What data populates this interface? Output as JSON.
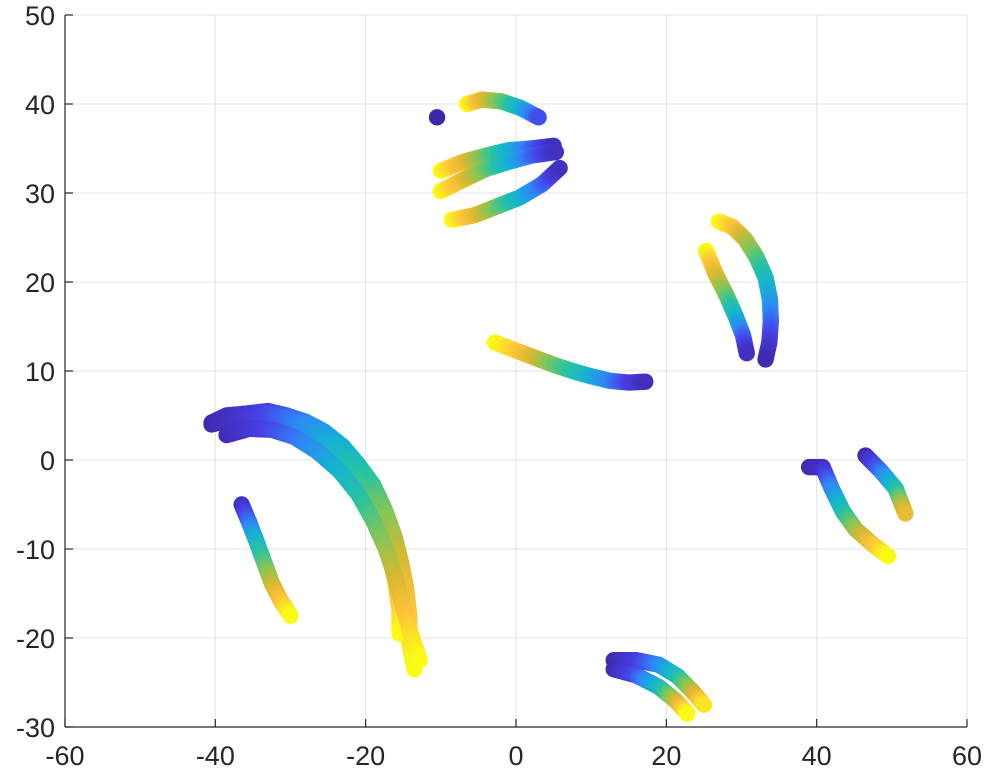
{
  "chart_data": {
    "type": "scatter",
    "title": "",
    "xlabel": "",
    "ylabel": "",
    "xlim": [
      -60,
      60
    ],
    "ylim": [
      -30,
      50
    ],
    "xticks": [
      -60,
      -40,
      -20,
      0,
      20,
      40,
      60
    ],
    "yticks": [
      -30,
      -20,
      -10,
      0,
      10,
      20,
      30,
      40,
      50
    ],
    "grid": true,
    "colormap": "parula",
    "colormap_stops": [
      "#3e26a8",
      "#4740e6",
      "#2e87f7",
      "#15b1d4",
      "#27c3a1",
      "#83c656",
      "#d8b832",
      "#ffc43a",
      "#f9fb15"
    ],
    "series": [
      {
        "points": [
          [
            -40.5,
            4.2
          ],
          [
            -38.5,
            5.0
          ],
          [
            -36,
            5.2
          ],
          [
            -33,
            5.5
          ],
          [
            -30.5,
            5.0
          ],
          [
            -28,
            4.3
          ],
          [
            -25.5,
            3.2
          ],
          [
            -23,
            1.5
          ],
          [
            -21,
            -0.5
          ],
          [
            -19,
            -2.8
          ],
          [
            -17.5,
            -5.5
          ],
          [
            -16.2,
            -8.5
          ],
          [
            -15.3,
            -11.5
          ],
          [
            -14.6,
            -14.5
          ],
          [
            -14.2,
            -17.5
          ],
          [
            -14.2,
            -20.5
          ],
          [
            -13.5,
            -23.5
          ]
        ],
        "c": [
          0.02,
          0.04,
          0.08,
          0.12,
          0.18,
          0.24,
          0.3,
          0.37,
          0.44,
          0.52,
          0.6,
          0.68,
          0.75,
          0.82,
          0.88,
          0.94,
          1.0
        ]
      },
      {
        "points": [
          [
            -40.5,
            4.0
          ],
          [
            -38,
            4.5
          ],
          [
            -35.5,
            5.0
          ],
          [
            -33,
            5.2
          ],
          [
            -30.5,
            4.7
          ],
          [
            -28,
            3.8
          ],
          [
            -25.5,
            2.5
          ],
          [
            -23.2,
            0.5
          ],
          [
            -21.2,
            -2.0
          ],
          [
            -19.5,
            -4.8
          ],
          [
            -18,
            -7.8
          ],
          [
            -16.8,
            -10.8
          ],
          [
            -16,
            -13.8
          ],
          [
            -15.5,
            -16.8
          ],
          [
            -15.5,
            -19.5
          ]
        ],
        "c": [
          0.02,
          0.05,
          0.09,
          0.14,
          0.2,
          0.27,
          0.34,
          0.42,
          0.5,
          0.58,
          0.66,
          0.74,
          0.82,
          0.9,
          1.0
        ]
      },
      {
        "points": [
          [
            -38.5,
            2.8
          ],
          [
            -35.5,
            3.5
          ],
          [
            -32.5,
            3.4
          ],
          [
            -29.5,
            2.6
          ],
          [
            -26.5,
            1.0
          ],
          [
            -23.5,
            -1.2
          ],
          [
            -21,
            -3.8
          ],
          [
            -19,
            -6.8
          ],
          [
            -17.3,
            -10.0
          ],
          [
            -16,
            -13.3
          ],
          [
            -15,
            -16.5
          ],
          [
            -14,
            -19.5
          ],
          [
            -12.8,
            -22.5
          ]
        ],
        "c": [
          0.03,
          0.08,
          0.14,
          0.21,
          0.29,
          0.38,
          0.47,
          0.56,
          0.65,
          0.74,
          0.83,
          0.92,
          1.0
        ]
      },
      {
        "points": [
          [
            -36.5,
            -5.0
          ],
          [
            -35.5,
            -7.0
          ],
          [
            -34.5,
            -9.2
          ],
          [
            -33.5,
            -11.5
          ],
          [
            -32.5,
            -13.8
          ],
          [
            -31.3,
            -15.8
          ],
          [
            -30,
            -17.5
          ]
        ],
        "c": [
          0.05,
          0.2,
          0.4,
          0.55,
          0.7,
          0.85,
          1.0
        ]
      },
      {
        "points": [
          [
            -10.5,
            38.5
          ]
        ],
        "c": [
          0.0
        ]
      },
      {
        "points": [
          [
            -6.5,
            40.0
          ],
          [
            -4.5,
            40.5
          ],
          [
            -2,
            40.3
          ],
          [
            0.5,
            39.6
          ],
          [
            3,
            38.5
          ]
        ],
        "c": [
          1.0,
          0.8,
          0.6,
          0.4,
          0.15
        ]
      },
      {
        "points": [
          [
            -10,
            32.5
          ],
          [
            -7,
            33.5
          ],
          [
            -4,
            34.2
          ],
          [
            -1,
            34.8
          ],
          [
            2,
            35.0
          ],
          [
            5,
            35.3
          ]
        ],
        "c": [
          1.0,
          0.8,
          0.6,
          0.4,
          0.2,
          0.05
        ]
      },
      {
        "points": [
          [
            -10,
            30.2
          ],
          [
            -7,
            31.5
          ],
          [
            -4,
            32.7
          ],
          [
            -1,
            33.5
          ],
          [
            2,
            34.2
          ],
          [
            5.3,
            34.6
          ]
        ],
        "c": [
          1.0,
          0.8,
          0.6,
          0.4,
          0.2,
          0.05
        ]
      },
      {
        "points": [
          [
            -8.5,
            27.0
          ],
          [
            -5.5,
            27.5
          ],
          [
            -2.5,
            28.5
          ],
          [
            0.5,
            29.5
          ],
          [
            3.5,
            31.0
          ],
          [
            5.8,
            32.8
          ]
        ],
        "c": [
          1.0,
          0.8,
          0.6,
          0.4,
          0.2,
          0.05
        ]
      },
      {
        "points": [
          [
            -2.8,
            13.2
          ],
          [
            0,
            12.3
          ],
          [
            2.5,
            11.5
          ],
          [
            5,
            10.7
          ],
          [
            7.5,
            10.0
          ],
          [
            10,
            9.4
          ],
          [
            12.5,
            8.9
          ],
          [
            15,
            8.7
          ],
          [
            17.2,
            8.8
          ]
        ],
        "c": [
          1.0,
          0.9,
          0.75,
          0.6,
          0.5,
          0.38,
          0.25,
          0.12,
          0.04
        ]
      },
      {
        "points": [
          [
            27,
            26.8
          ],
          [
            28.8,
            26.2
          ],
          [
            30.5,
            24.8
          ],
          [
            32,
            22.8
          ],
          [
            33.2,
            20.5
          ],
          [
            33.8,
            18.0
          ],
          [
            33.9,
            15.5
          ],
          [
            33.7,
            13.2
          ],
          [
            33.2,
            11.3
          ]
        ],
        "c": [
          1.0,
          0.88,
          0.72,
          0.58,
          0.45,
          0.33,
          0.2,
          0.1,
          0.02
        ]
      },
      {
        "points": [
          [
            25.3,
            23.5
          ],
          [
            26.5,
            21.0
          ],
          [
            28,
            18.5
          ],
          [
            29.3,
            16.0
          ],
          [
            30.2,
            14.0
          ],
          [
            30.7,
            12.0
          ]
        ],
        "c": [
          1.0,
          0.8,
          0.6,
          0.4,
          0.2,
          0.05
        ]
      },
      {
        "points": [
          [
            39,
            -0.8
          ],
          [
            40.8,
            -0.8
          ],
          [
            42,
            -3.2
          ],
          [
            43.5,
            -5.8
          ],
          [
            45.2,
            -7.8
          ],
          [
            47.5,
            -9.5
          ],
          [
            49.5,
            -10.8
          ]
        ],
        "c": [
          0.02,
          0.05,
          0.25,
          0.45,
          0.65,
          0.85,
          1.0
        ]
      },
      {
        "points": [
          [
            46.5,
            0.5
          ],
          [
            48.5,
            -1.2
          ],
          [
            50.5,
            -3.2
          ],
          [
            51.8,
            -6.0
          ]
        ],
        "c": [
          0.02,
          0.2,
          0.45,
          0.8
        ]
      },
      {
        "points": [
          [
            13,
            -22.5
          ],
          [
            16,
            -22.5
          ],
          [
            19,
            -23.0
          ],
          [
            21.5,
            -24.3
          ],
          [
            23.5,
            -26.0
          ],
          [
            25,
            -27.5
          ]
        ],
        "c": [
          0.02,
          0.1,
          0.25,
          0.45,
          0.7,
          0.95
        ]
      },
      {
        "points": [
          [
            13,
            -23.5
          ],
          [
            16,
            -24.2
          ],
          [
            19,
            -25.5
          ],
          [
            21.2,
            -27.0
          ],
          [
            22.8,
            -28.5
          ]
        ],
        "c": [
          0.02,
          0.15,
          0.4,
          0.7,
          1.0
        ]
      }
    ]
  }
}
